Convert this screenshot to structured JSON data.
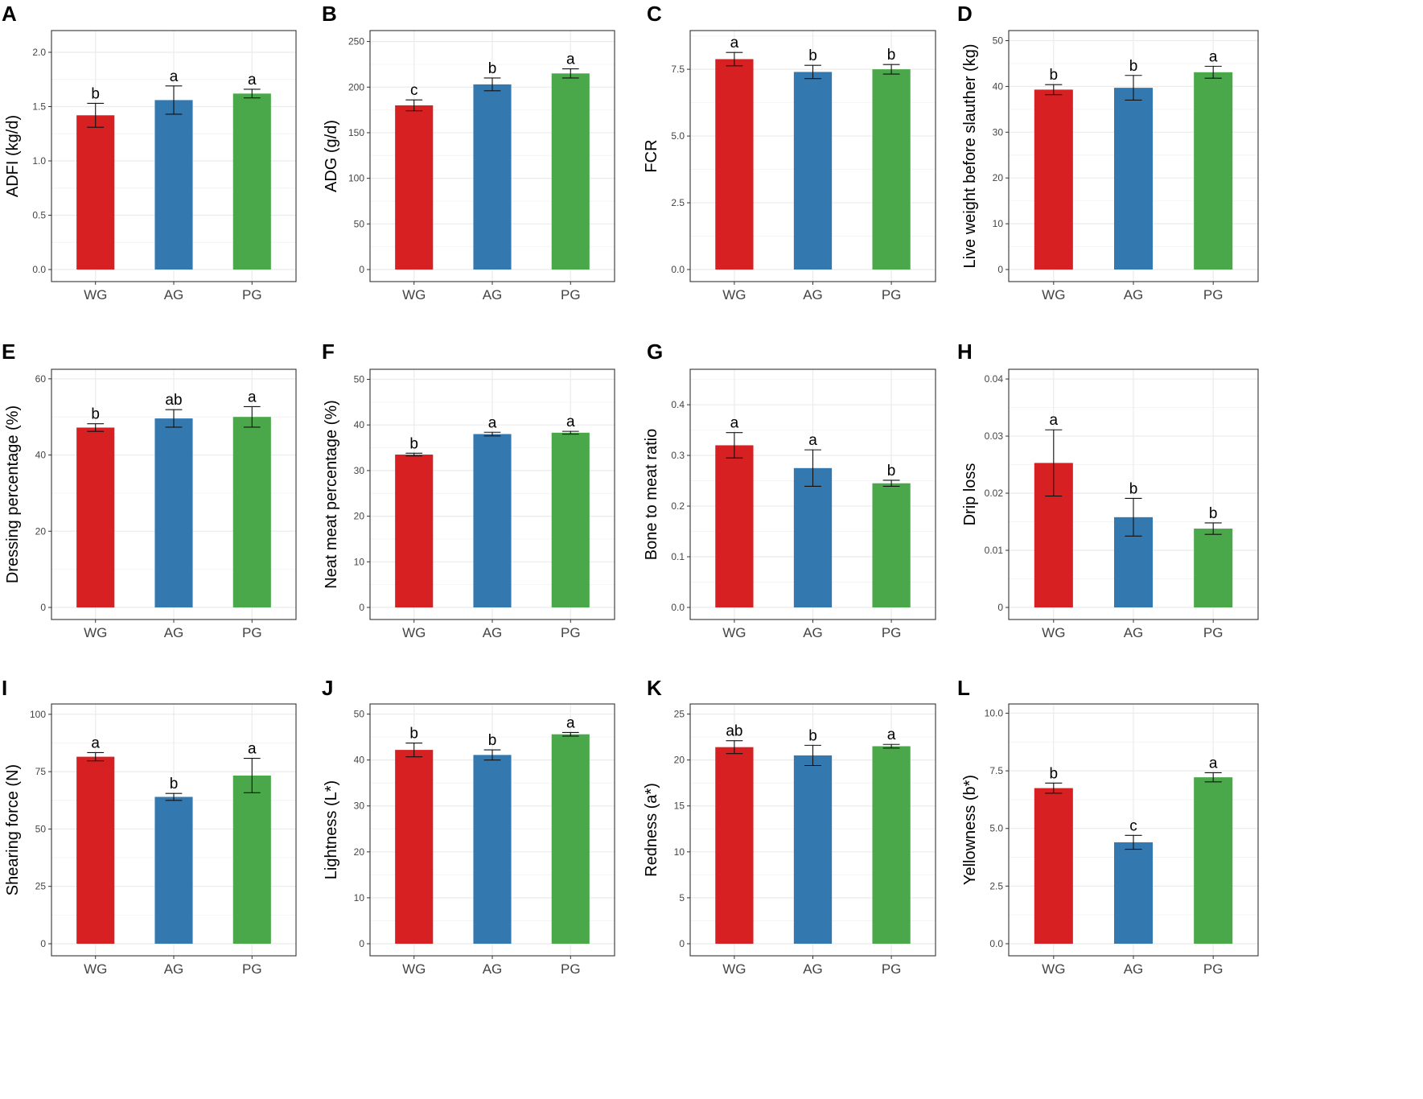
{
  "colors": {
    "WG": "#d62022",
    "AG": "#3478b0",
    "PG": "#4aa84a",
    "grid": "#ebebeb",
    "frame": "#333333"
  },
  "chart_data": [
    {
      "panel": "A",
      "type": "bar",
      "ylabel": "ADFI (kg/d)",
      "categories": [
        "WG",
        "AG",
        "PG"
      ],
      "values": [
        1.42,
        1.56,
        1.62
      ],
      "errors": [
        0.11,
        0.13,
        0.04
      ],
      "letters": [
        "b",
        "a",
        "a"
      ],
      "ylim": [
        0,
        2.2
      ],
      "ticks": [
        0,
        0.5,
        1,
        1.5,
        2
      ],
      "tick_labels": [
        "0.0",
        "0.5",
        "1.0",
        "1.5",
        "2.0"
      ]
    },
    {
      "panel": "B",
      "type": "bar",
      "ylabel": "ADG (g/d)",
      "categories": [
        "WG",
        "AG",
        "PG"
      ],
      "values": [
        180,
        203,
        215
      ],
      "errors": [
        6,
        7,
        5
      ],
      "letters": [
        "c",
        "b",
        "a"
      ],
      "ylim": [
        0,
        262
      ],
      "ticks": [
        0,
        50,
        100,
        150,
        200,
        250
      ],
      "tick_labels": [
        "0",
        "50",
        "100",
        "150",
        "200",
        "250"
      ]
    },
    {
      "panel": "C",
      "type": "bar",
      "ylabel": "FCR",
      "categories": [
        "WG",
        "AG",
        "PG"
      ],
      "values": [
        7.88,
        7.4,
        7.5
      ],
      "errors": [
        0.25,
        0.25,
        0.18
      ],
      "letters": [
        "a",
        "b",
        "b"
      ],
      "ylim": [
        0,
        8.95
      ],
      "ticks": [
        0,
        2.5,
        5,
        7.5
      ],
      "tick_labels": [
        "0.0",
        "2.5",
        "5.0",
        "7.5"
      ]
    },
    {
      "panel": "D",
      "type": "bar",
      "ylabel": "Live weight before slauther (kg)",
      "categories": [
        "WG",
        "AG",
        "PG"
      ],
      "values": [
        39.3,
        39.7,
        43.1
      ],
      "errors": [
        1.1,
        2.7,
        1.3
      ],
      "letters": [
        "b",
        "b",
        "a"
      ],
      "ylim": [
        0,
        52.2
      ],
      "ticks": [
        0,
        10,
        20,
        30,
        40,
        50
      ],
      "tick_labels": [
        "0",
        "10",
        "20",
        "30",
        "40",
        "50"
      ]
    },
    {
      "panel": "E",
      "type": "bar",
      "ylabel": "Dressing percentage (%)",
      "categories": [
        "WG",
        "AG",
        "PG"
      ],
      "values": [
        47.2,
        49.6,
        50.0
      ],
      "errors": [
        1.0,
        2.3,
        2.7
      ],
      "letters": [
        "b",
        "ab",
        "a"
      ],
      "ylim": [
        0,
        62.5
      ],
      "ticks": [
        0,
        20,
        40,
        60
      ],
      "tick_labels": [
        "0",
        "20",
        "40",
        "60"
      ]
    },
    {
      "panel": "F",
      "type": "bar",
      "ylabel": "Neat meat percentage (%)",
      "categories": [
        "WG",
        "AG",
        "PG"
      ],
      "values": [
        33.5,
        38.0,
        38.3
      ],
      "errors": [
        0.3,
        0.4,
        0.3
      ],
      "letters": [
        "b",
        "a",
        "a"
      ],
      "ylim": [
        0,
        52.2
      ],
      "ticks": [
        0,
        10,
        20,
        30,
        40,
        50
      ],
      "tick_labels": [
        "0",
        "10",
        "20",
        "30",
        "40",
        "50"
      ]
    },
    {
      "panel": "G",
      "type": "bar",
      "ylabel": "Bone to meat ratio",
      "categories": [
        "WG",
        "AG",
        "PG"
      ],
      "values": [
        0.32,
        0.275,
        0.245
      ],
      "errors": [
        0.025,
        0.036,
        0.006
      ],
      "letters": [
        "a",
        "a",
        "b"
      ],
      "ylim": [
        0,
        0.47
      ],
      "ticks": [
        0,
        0.1,
        0.2,
        0.3,
        0.4
      ],
      "tick_labels": [
        "0.0",
        "0.1",
        "0.2",
        "0.3",
        "0.4"
      ]
    },
    {
      "panel": "H",
      "type": "bar",
      "ylabel": "Drip loss",
      "categories": [
        "WG",
        "AG",
        "PG"
      ],
      "values": [
        0.0253,
        0.0158,
        0.0138
      ],
      "errors": [
        0.0058,
        0.0033,
        0.001
      ],
      "letters": [
        "a",
        "b",
        "b"
      ],
      "ylim": [
        0,
        0.0417
      ],
      "ticks": [
        0,
        0.01,
        0.02,
        0.03,
        0.04
      ],
      "tick_labels": [
        "0",
        "0.01",
        "0.02",
        "0.03",
        "0.04"
      ]
    },
    {
      "panel": "I",
      "type": "bar",
      "ylabel": "Shearing force (N)",
      "categories": [
        "WG",
        "AG",
        "PG"
      ],
      "values": [
        81.5,
        64.0,
        73.3
      ],
      "errors": [
        1.8,
        1.5,
        7.5
      ],
      "letters": [
        "a",
        "b",
        "a"
      ],
      "ylim": [
        0,
        104.5
      ],
      "ticks": [
        0,
        25,
        50,
        75,
        100
      ],
      "tick_labels": [
        "0",
        "25",
        "50",
        "75",
        "100"
      ]
    },
    {
      "panel": "J",
      "type": "bar",
      "ylabel": "Lightness (L*)",
      "categories": [
        "WG",
        "AG",
        "PG"
      ],
      "values": [
        42.2,
        41.1,
        45.6
      ],
      "errors": [
        1.5,
        1.1,
        0.4
      ],
      "letters": [
        "b",
        "b",
        "a"
      ],
      "ylim": [
        0,
        52.2
      ],
      "ticks": [
        0,
        10,
        20,
        30,
        40,
        50
      ],
      "tick_labels": [
        "0",
        "10",
        "20",
        "30",
        "40",
        "50"
      ]
    },
    {
      "panel": "K",
      "type": "bar",
      "ylabel": "Redness (a*)",
      "categories": [
        "WG",
        "AG",
        "PG"
      ],
      "values": [
        21.4,
        20.5,
        21.5
      ],
      "errors": [
        0.7,
        1.1,
        0.2
      ],
      "letters": [
        "ab",
        "b",
        "a"
      ],
      "ylim": [
        0,
        26.1
      ],
      "ticks": [
        0,
        5,
        10,
        15,
        20,
        25
      ],
      "tick_labels": [
        "0",
        "5",
        "10",
        "15",
        "20",
        "25"
      ]
    },
    {
      "panel": "L",
      "type": "bar",
      "ylabel": "Yellowness (b*)",
      "categories": [
        "WG",
        "AG",
        "PG"
      ],
      "values": [
        6.75,
        4.4,
        7.22
      ],
      "errors": [
        0.22,
        0.3,
        0.2
      ],
      "letters": [
        "b",
        "c",
        "a"
      ],
      "ylim": [
        0,
        10.4
      ],
      "ticks": [
        0,
        2.5,
        5,
        7.5,
        10
      ],
      "tick_labels": [
        "0.0",
        "2.5",
        "5.0",
        "7.5",
        "10.0"
      ]
    }
  ]
}
